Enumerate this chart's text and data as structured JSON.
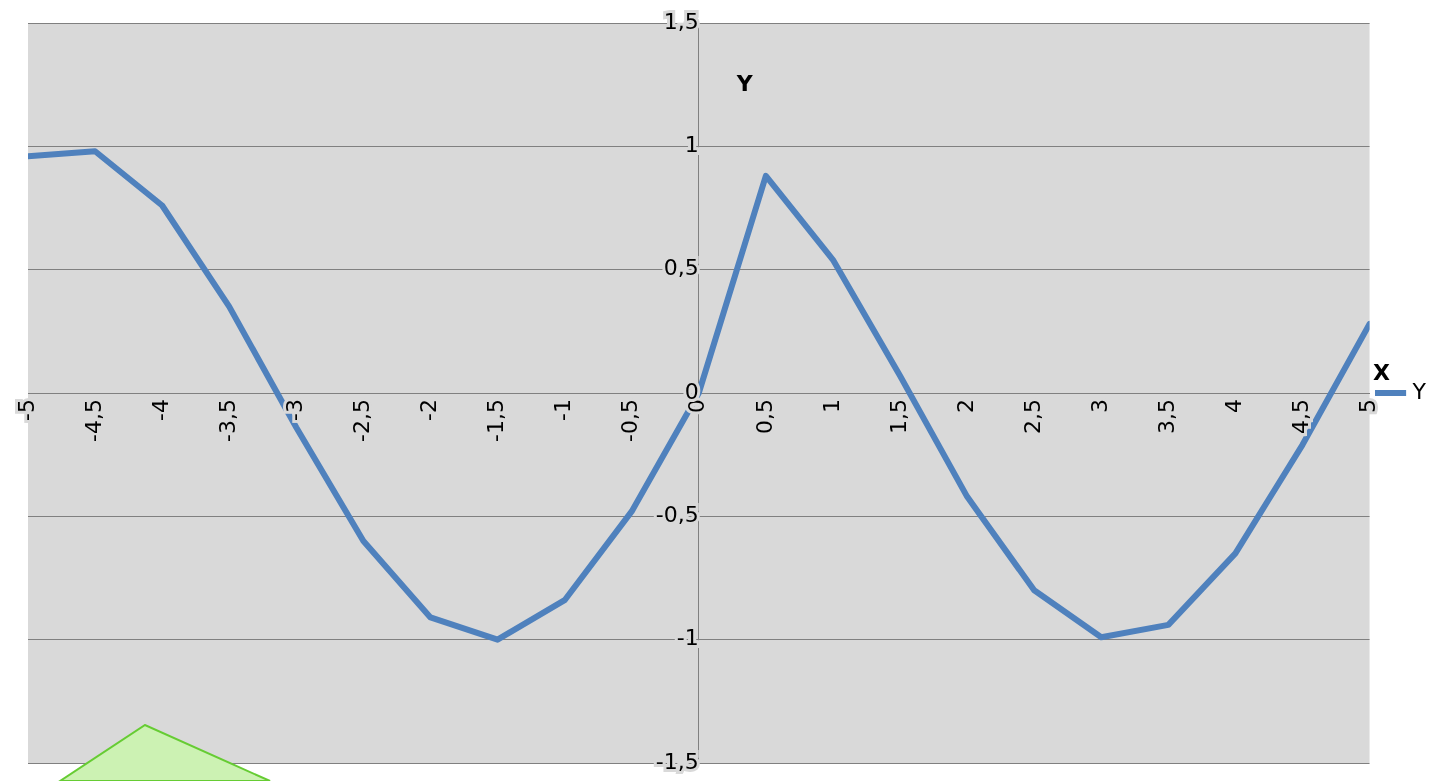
{
  "chart_data": {
    "type": "line",
    "xlabel": "X",
    "ylabel": "Y",
    "x": [
      -5,
      -4.5,
      -4,
      -3.5,
      -3,
      -2.5,
      -2,
      -1.5,
      -1,
      -0.5,
      0,
      0.5,
      1,
      1.5,
      2,
      2.5,
      3,
      3.5,
      4,
      4.5,
      5
    ],
    "series": [
      {
        "name": "Y",
        "color": "#4f81bd",
        "values": [
          0.96,
          0.98,
          0.76,
          0.35,
          -0.14,
          -0.6,
          -0.91,
          -1.0,
          -0.84,
          -0.48,
          0,
          0.88,
          0.54,
          0.07,
          -0.42,
          -0.8,
          -0.99,
          -0.94,
          -0.65,
          -0.21,
          0.28
        ]
      }
    ],
    "xlim": [
      -5,
      5
    ],
    "xticks": [
      -5,
      {
        "value": -4.5,
        "label": "-4,5"
      },
      -4,
      {
        "value": -3.5,
        "label": "-3,5"
      },
      -3,
      {
        "value": -2.5,
        "label": "-2,5"
      },
      -2,
      {
        "value": -1.5,
        "label": "-1,5"
      },
      -1,
      {
        "value": -0.5,
        "label": "-0,5"
      },
      0,
      {
        "value": 0.5,
        "label": "0,5"
      },
      1,
      {
        "value": 1.5,
        "label": "1,5"
      },
      2,
      {
        "value": 2.5,
        "label": "2,5"
      },
      3,
      {
        "value": 3.5,
        "label": "3,5"
      },
      4,
      {
        "value": 4.5,
        "label": "4,5"
      },
      5
    ],
    "ylim": [
      -1.5,
      1.5
    ],
    "yticks": [
      {
        "value": -1.5,
        "label": "-1,5"
      },
      -1,
      {
        "value": -0.5,
        "label": "-0,5"
      },
      0,
      {
        "value": 0.5,
        "label": "0,5"
      },
      1,
      {
        "value": 1.5,
        "label": "1,5"
      }
    ],
    "grid": "y",
    "legend": "right",
    "marker": "none",
    "line_style": "solid"
  }
}
